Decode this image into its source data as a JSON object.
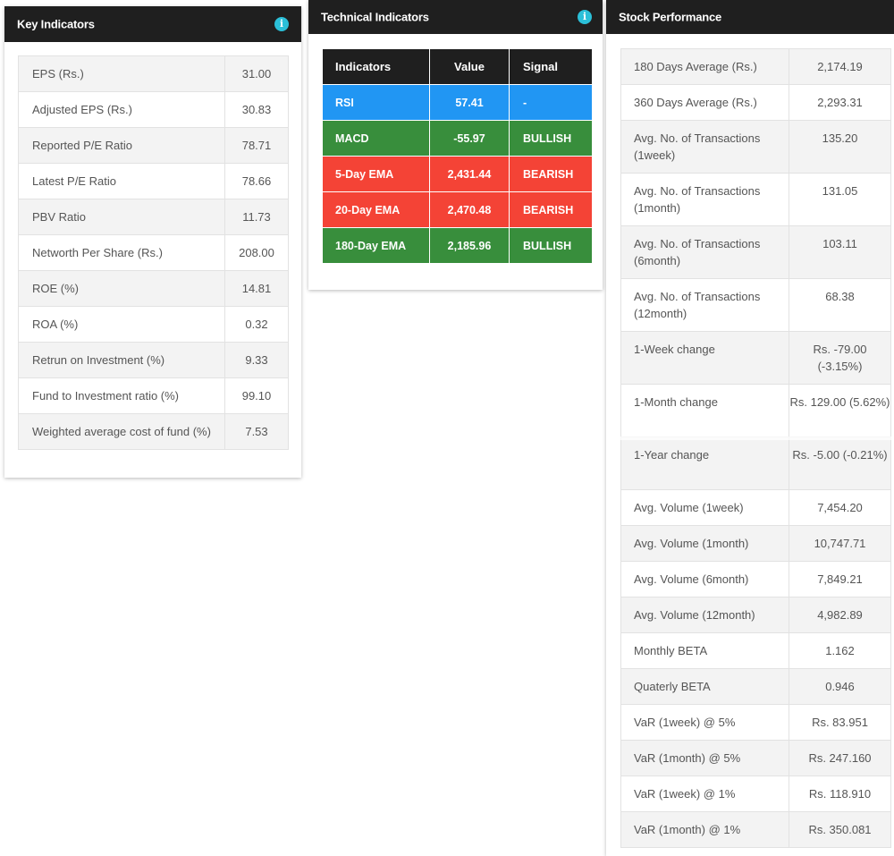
{
  "key_indicators": {
    "title": "Key Indicators",
    "info_icon": "i",
    "rows": [
      {
        "label": "EPS (Rs.)",
        "value": "31.00"
      },
      {
        "label": "Adjusted EPS (Rs.)",
        "value": "30.83"
      },
      {
        "label": "Reported P/E Ratio",
        "value": "78.71"
      },
      {
        "label": "Latest P/E Ratio",
        "value": "78.66"
      },
      {
        "label": "PBV Ratio",
        "value": "11.73"
      },
      {
        "label": "Networth Per Share (Rs.)",
        "value": "208.00"
      },
      {
        "label": "ROE (%)",
        "value": "14.81"
      },
      {
        "label": "ROA (%)",
        "value": "0.32"
      },
      {
        "label": "Retrun on Investment (%)",
        "value": "9.33"
      },
      {
        "label": "Fund to Investment ratio (%)",
        "value": "99.10"
      },
      {
        "label": "Weighted average cost of fund (%)",
        "value": "7.53"
      }
    ]
  },
  "technical_indicators": {
    "title": "Technical Indicators",
    "info_icon": "i",
    "headers": {
      "indicator": "Indicators",
      "value": "Value",
      "signal": "Signal"
    },
    "rows": [
      {
        "indicator": "RSI",
        "value": "57.41",
        "signal": "-",
        "color": "#2196f3"
      },
      {
        "indicator": "MACD",
        "value": "-55.97",
        "signal": "BULLISH",
        "color": "#388e3c"
      },
      {
        "indicator": "5-Day EMA",
        "value": "2,431.44",
        "signal": "BEARISH",
        "color": "#f44336"
      },
      {
        "indicator": "20-Day EMA",
        "value": "2,470.48",
        "signal": "BEARISH",
        "color": "#f44336"
      },
      {
        "indicator": "180-Day EMA",
        "value": "2,185.96",
        "signal": "BULLISH",
        "color": "#388e3c"
      }
    ]
  },
  "stock_performance": {
    "title": "Stock Performance",
    "rows": [
      {
        "label": "180 Days Average (Rs.)",
        "value": "2,174.19"
      },
      {
        "label": "360 Days Average (Rs.)",
        "value": "2,293.31"
      },
      {
        "label": "Avg. No. of Transactions (1week)",
        "value": "135.20"
      },
      {
        "label": "Avg. No. of Transactions (1month)",
        "value": "131.05"
      },
      {
        "label": "Avg. No. of Transactions (6month)",
        "value": "103.11"
      },
      {
        "label": "Avg. No. of Transactions (12month)",
        "value": "68.38"
      },
      {
        "label": "1-Week change",
        "value": "Rs. -79.00 (-3.15%)"
      },
      {
        "label": "1-Month change",
        "value": "Rs. 129.00 (5.62%)"
      },
      {
        "label": "1-Year change",
        "value": "Rs. -5.00 (-0.21%)"
      },
      {
        "label": "Avg. Volume (1week)",
        "value": "7,454.20"
      },
      {
        "label": "Avg. Volume (1month)",
        "value": "10,747.71"
      },
      {
        "label": "Avg. Volume (6month)",
        "value": "7,849.21"
      },
      {
        "label": "Avg. Volume (12month)",
        "value": "4,982.89"
      },
      {
        "label": "Monthly BETA",
        "value": "1.162"
      },
      {
        "label": "Quaterly BETA",
        "value": "0.946"
      },
      {
        "label": "VaR (1week) @ 5%",
        "value": "Rs. 83.951"
      },
      {
        "label": "VaR (1month) @ 5%",
        "value": "Rs. 247.160"
      },
      {
        "label": "VaR (1week) @ 1%",
        "value": "Rs. 118.910"
      },
      {
        "label": "VaR (1month) @ 1%",
        "value": "Rs. 350.081"
      }
    ]
  }
}
